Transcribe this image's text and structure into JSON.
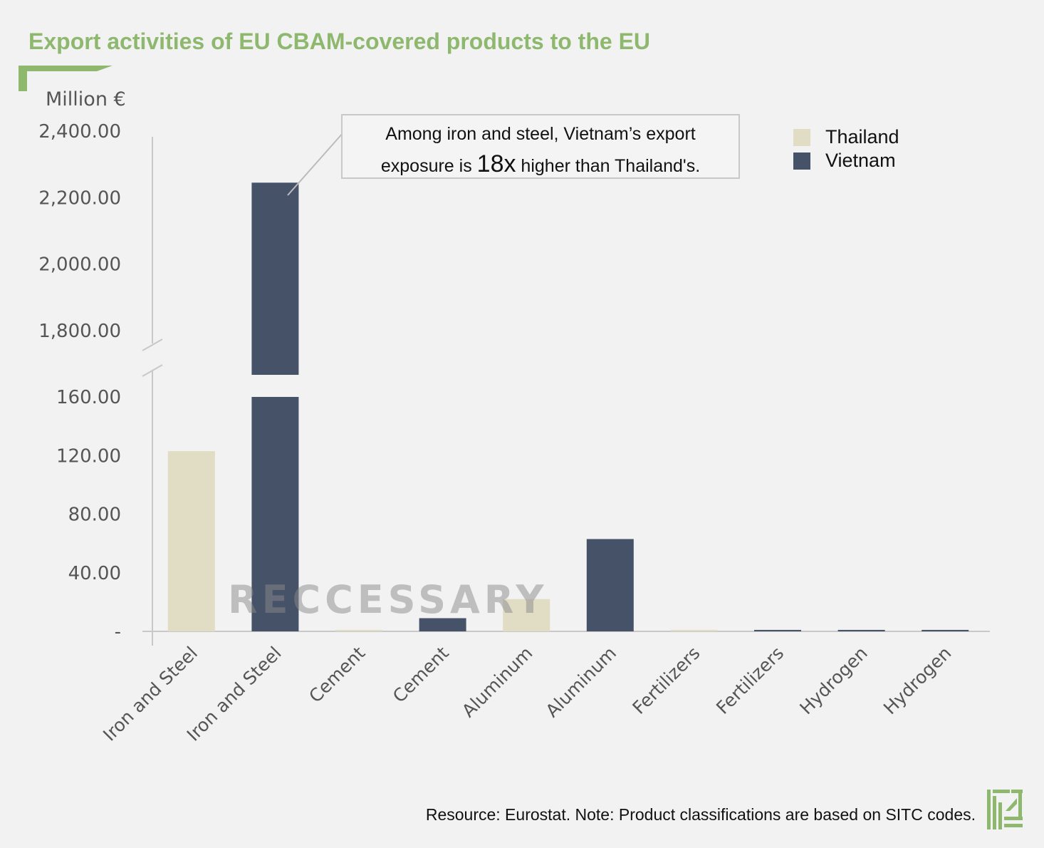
{
  "title": "Export activities of EU CBAM-covered products to the EU",
  "unit_label": "Million €",
  "callout": {
    "line1": "Among iron and steel, Vietnam’s export",
    "pre": "exposure is ",
    "big": "18x",
    "post": " higher than Thailand's."
  },
  "watermark": "RECCESSARY",
  "source": "Resource: Eurostat. Note: Product classifications are based on SITC codes.",
  "colors": {
    "thailand": "#e1dcc4",
    "vietnam": "#465268",
    "title": "#8db86e",
    "axis": "#c8c8c8"
  },
  "chart_data": {
    "type": "bar",
    "categories": [
      "Iron and Steel",
      "Iron and Steel",
      "Cement",
      "Cement",
      "Aluminum",
      "Aluminum",
      "Fertilizers",
      "Fertilizers",
      "Hydrogen",
      "Hydrogen"
    ],
    "series": [
      {
        "name": "Thailand",
        "values": [
          123,
          null,
          1,
          null,
          22,
          null,
          1,
          null,
          null,
          null
        ]
      },
      {
        "name": "Vietnam",
        "values": [
          null,
          2245,
          null,
          9,
          null,
          63,
          null,
          1,
          1,
          1
        ]
      }
    ],
    "ylabel": "Million €",
    "yaxis_broken": true,
    "ylim_lower": [
      0,
      170
    ],
    "ylim_upper": [
      1800,
      2400
    ],
    "yticks_lower": [
      "-",
      "40.00",
      "80.00",
      "120.00",
      "160.00"
    ],
    "yticks_upper": [
      "1,800.00",
      "2,000.00",
      "2,200.00",
      "2,400.00"
    ],
    "legend": [
      "Thailand",
      "Vietnam"
    ],
    "legend_position": "top-right",
    "grid": false
  }
}
